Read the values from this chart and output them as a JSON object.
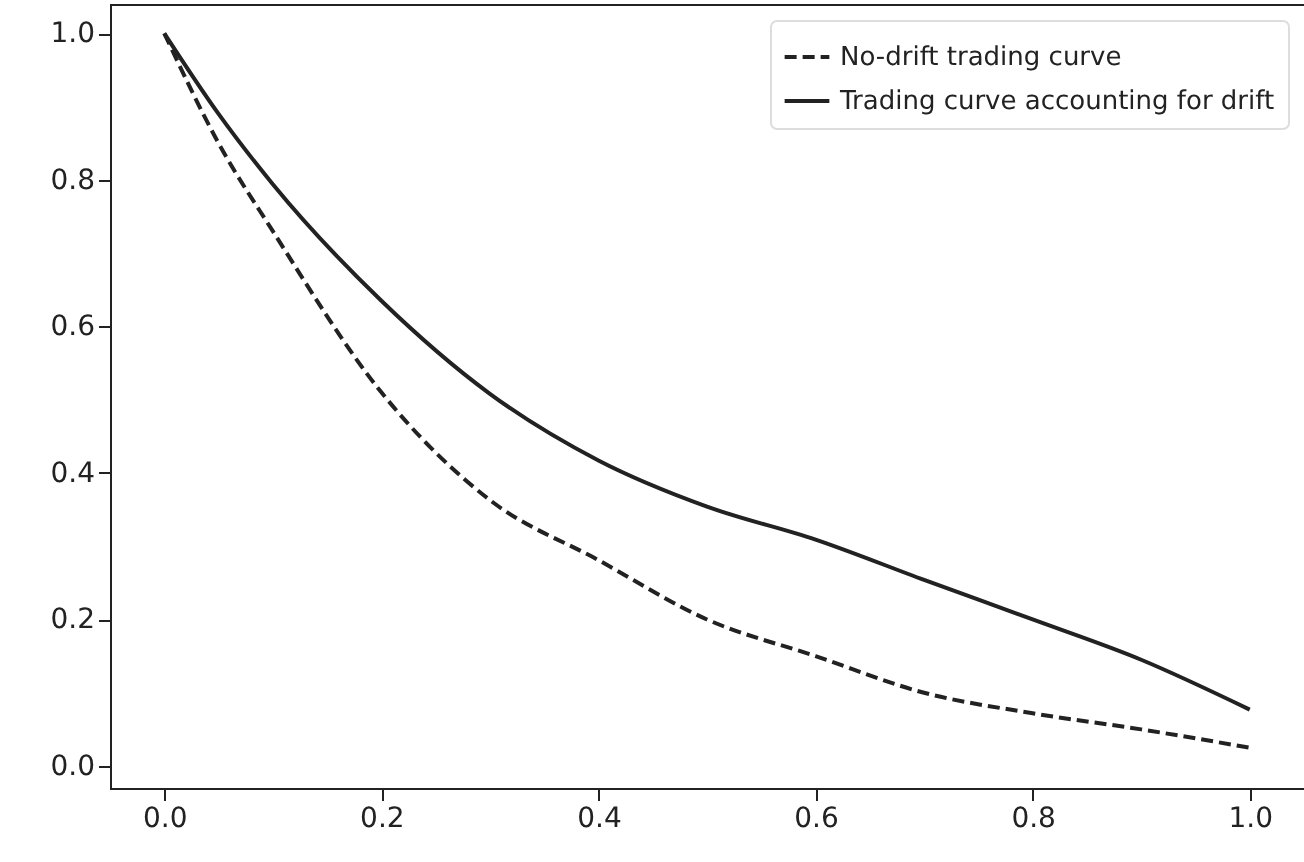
{
  "chart_data": {
    "type": "line",
    "x": [
      0,
      0.05,
      0.1,
      0.2,
      0.3,
      0.4,
      0.5,
      0.6,
      0.7,
      0.8,
      0.9,
      1.0
    ],
    "series": [
      {
        "name": "No-drift trading curve",
        "color": "#222222",
        "line_style": "dashed",
        "values": [
          1.0,
          0.85,
          0.73,
          0.51,
          0.363,
          0.281,
          0.2,
          0.15,
          0.1,
          0.072,
          0.05,
          0.025
        ]
      },
      {
        "name": "Trading curve accounting for drift",
        "color": "#222222",
        "line_style": "solid",
        "values": [
          1.0,
          0.89,
          0.794,
          0.635,
          0.508,
          0.417,
          0.354,
          0.309,
          0.254,
          0.2,
          0.145,
          0.077
        ]
      }
    ],
    "xlim": [
      -0.05,
      1.05
    ],
    "ylim": [
      -0.03,
      1.04
    ],
    "xticks": [
      {
        "value": 0,
        "label": "0.0"
      },
      0.2,
      0.4,
      0.6,
      0.8,
      {
        "value": 1,
        "label": "1.0"
      }
    ],
    "yticks": [
      {
        "value": 0,
        "label": "0.0"
      },
      0.2,
      0.4,
      0.6,
      0.8,
      {
        "value": 1,
        "label": "1.0"
      }
    ],
    "grid": false,
    "legend": "top right",
    "marker": "none"
  }
}
